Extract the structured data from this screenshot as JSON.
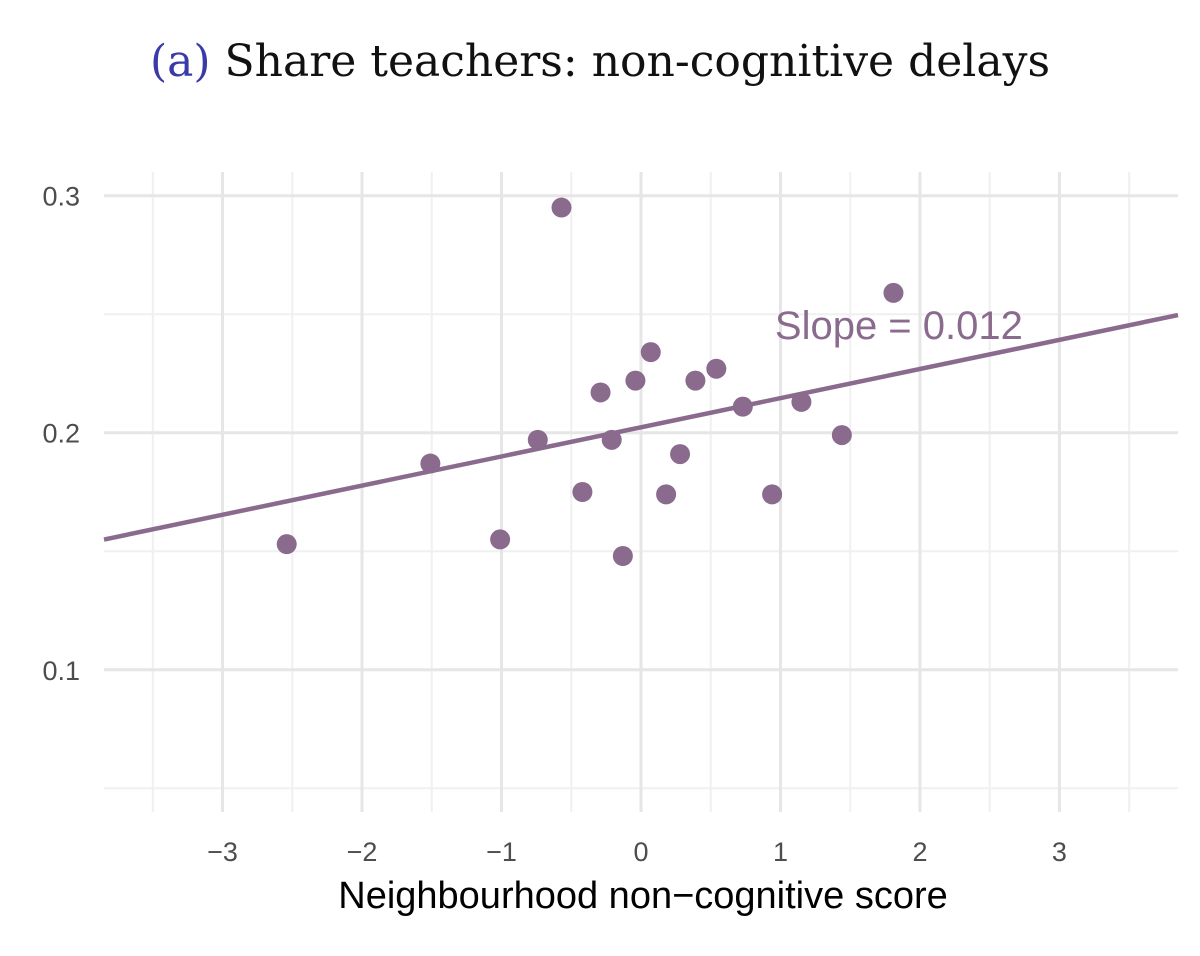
{
  "panel": {
    "label": "(a)",
    "title": "Share teachers: non-cognitive delays"
  },
  "chart_data": {
    "type": "scatter",
    "xlabel": "Neighbourhood non−cognitive score",
    "ylabel": "",
    "xlim": [
      -3.85,
      3.85
    ],
    "ylim": [
      0.04,
      0.31
    ],
    "x_ticks": [
      -3,
      -2,
      -1,
      0,
      1,
      2,
      3
    ],
    "x_tick_labels": [
      "−3",
      "−2",
      "−1",
      "0",
      "1",
      "2",
      "3"
    ],
    "y_ticks": [
      0.1,
      0.2,
      0.3
    ],
    "y_tick_labels": [
      "0.1",
      "0.2",
      "0.3"
    ],
    "grid": true,
    "color": "#8a6b8e",
    "points": [
      {
        "x": -2.54,
        "y": 0.153
      },
      {
        "x": -1.51,
        "y": 0.187
      },
      {
        "x": -1.01,
        "y": 0.155
      },
      {
        "x": -0.74,
        "y": 0.197
      },
      {
        "x": -0.57,
        "y": 0.295
      },
      {
        "x": -0.42,
        "y": 0.175
      },
      {
        "x": -0.29,
        "y": 0.217
      },
      {
        "x": -0.21,
        "y": 0.197
      },
      {
        "x": -0.13,
        "y": 0.148
      },
      {
        "x": -0.04,
        "y": 0.222
      },
      {
        "x": 0.07,
        "y": 0.234
      },
      {
        "x": 0.18,
        "y": 0.174
      },
      {
        "x": 0.28,
        "y": 0.191
      },
      {
        "x": 0.39,
        "y": 0.222
      },
      {
        "x": 0.54,
        "y": 0.227
      },
      {
        "x": 0.73,
        "y": 0.211
      },
      {
        "x": 0.94,
        "y": 0.174
      },
      {
        "x": 1.15,
        "y": 0.213
      },
      {
        "x": 1.44,
        "y": 0.199
      },
      {
        "x": 1.81,
        "y": 0.259
      }
    ],
    "fit_line": {
      "intercept": 0.2023,
      "slope": 0.0123
    },
    "annotation": {
      "text": "Slope = 0.012",
      "x": 0.96,
      "y": 0.2455
    }
  }
}
